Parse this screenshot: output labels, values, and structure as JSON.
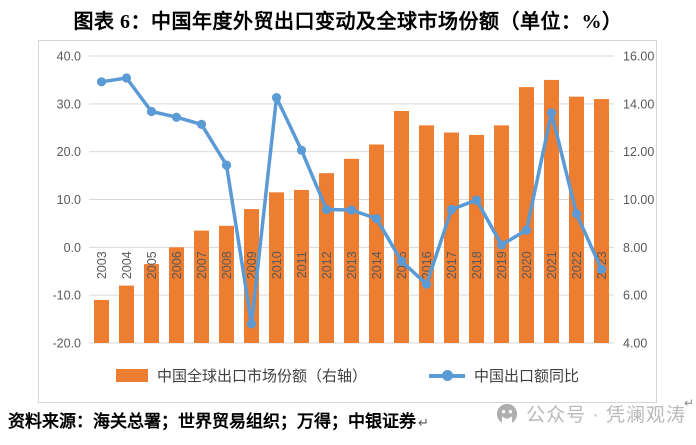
{
  "title": "图表 6：中国年度外贸出口变动及全球市场份额（单位：%）",
  "source": "资料来源：海关总署；世界贸易组织；万得；中银证券",
  "watermark": {
    "icon": "wechat-official-account-icon",
    "text": "公众号 · 凭澜观涛"
  },
  "formatting_marks": {
    "return_mark": "↵"
  },
  "colors": {
    "bar": "#ED7D31",
    "line": "#5B9BD5",
    "grid": "#D9D9D9",
    "axis_text": "#595959",
    "legend_text": "#404040",
    "watermark_text": "#B9B9B9"
  },
  "legend": {
    "bars": "中国全球出口市场份额（右轴）",
    "line": "中国出口额同比"
  },
  "chart_data": {
    "type": "bar",
    "subtype": "combo bar+line, dual axis",
    "title": "图表 6：中国年度外贸出口变动及全球市场份额（单位：%）",
    "categories": [
      "2003",
      "2004",
      "2005",
      "2006",
      "2007",
      "2008",
      "2009",
      "2010",
      "2011",
      "2012",
      "2013",
      "2014",
      "2015",
      "2016",
      "2017",
      "2018",
      "2019",
      "2020",
      "2021",
      "2022",
      "2023"
    ],
    "series": [
      {
        "name": "中国全球出口市场份额（右轴）",
        "type": "bar",
        "axis": "right",
        "color": "#ED7D31",
        "values": [
          5.8,
          6.4,
          7.3,
          8.0,
          8.7,
          8.9,
          9.6,
          10.3,
          10.4,
          11.1,
          11.7,
          12.3,
          13.7,
          13.1,
          12.8,
          12.7,
          13.1,
          14.7,
          15.0,
          14.3,
          14.2
        ]
      },
      {
        "name": "中国出口额同比",
        "type": "line",
        "axis": "left",
        "color": "#5B9BD5",
        "values": [
          34.6,
          35.4,
          28.4,
          27.2,
          25.7,
          17.2,
          -16.0,
          31.3,
          20.3,
          7.9,
          7.8,
          6.0,
          -2.9,
          -7.7,
          7.9,
          9.9,
          0.5,
          3.6,
          28.1,
          7.0,
          -4.6
        ]
      }
    ],
    "left_axis": {
      "range": [
        -20,
        40
      ],
      "ticks": [
        "40.0",
        "30.0",
        "20.0",
        "10.0",
        "0.0",
        "-10.0",
        "-20.0"
      ]
    },
    "right_axis": {
      "range": [
        4,
        16
      ],
      "ticks": [
        "16.00",
        "14.00",
        "12.00",
        "10.00",
        "8.00",
        "6.00",
        "4.00"
      ]
    },
    "grid": "horizontal gridlines only",
    "legend_position": "bottom",
    "x_label_rotation": -90
  }
}
